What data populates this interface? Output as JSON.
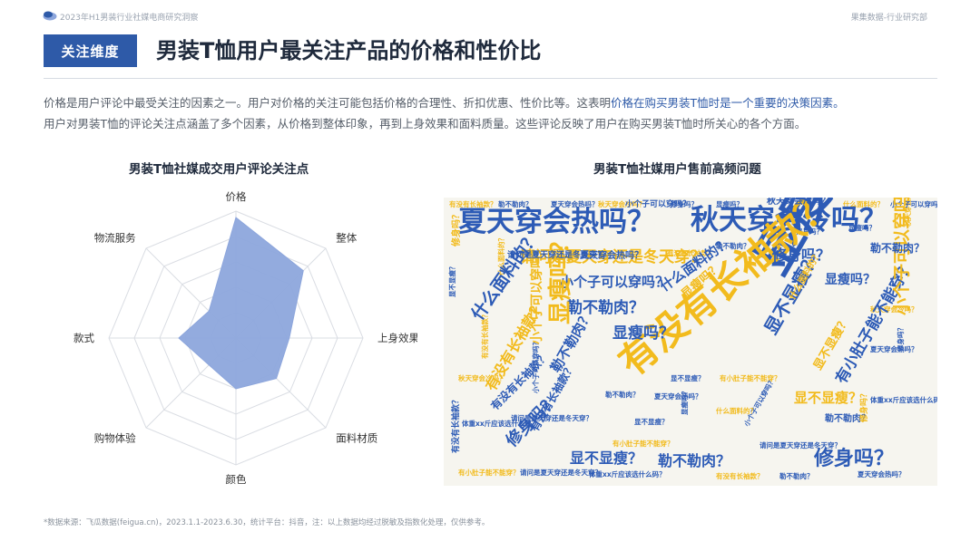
{
  "header": {
    "report_name": "2023年H1男装行业社媒电商研究洞察",
    "org": "果集数据-行业研究部"
  },
  "section_tag": "关注维度",
  "headline": "男装T恤用户最关注产品的价格和性价比",
  "paragraph": {
    "line1_a": "价格是用户评论中最受关注的因素之一。用户对价格的关注可能包括价格的合理性、折扣优惠、性价比等。这表明",
    "line1_hl": "价格在购买男装T恤时是一个重要的决策因素。",
    "line2": "用户对男装T恤的评论关注点涵盖了多个因素，从价格到整体印象，再到上身效果和面料质量。这些评论反映了用户在购买男装T恤时所关心的各个方面。"
  },
  "colors": {
    "accent": "#2e5aa8",
    "radar_fill": "#8da6dc",
    "cloud_blue": "#2d5bb6",
    "cloud_yellow": "#f2bb1d",
    "cloud_bg": "#f6f5ef"
  },
  "chart_data": [
    {
      "type": "radar",
      "title": "男装T恤社媒成交用户评论关注点",
      "categories": [
        "价格",
        "整体",
        "上身效果",
        "面料材质",
        "颜色",
        "购物体验",
        "款式",
        "物流服务"
      ],
      "values": [
        0.95,
        0.75,
        0.42,
        0.45,
        0.4,
        0.3,
        0.45,
        0.3
      ],
      "range": [
        0,
        1
      ],
      "rings": 5
    },
    {
      "type": "wordcloud",
      "title": "男装T恤社媒用户售前高频问题",
      "words": [
        {
          "text": "显瘦吗？",
          "weight": 10
        },
        {
          "text": "有没有长袖款？",
          "weight": 8
        },
        {
          "text": "夏天穿会热吗？",
          "weight": 7
        },
        {
          "text": "秋天穿会冷吗？",
          "weight": 7
        },
        {
          "text": "请问是夏天穿还是冬天穿？",
          "weight": 5
        },
        {
          "text": "小个子可以穿吗？",
          "weight": 4
        },
        {
          "text": "勒不勒肉？",
          "weight": 4
        },
        {
          "text": "修身吗？",
          "weight": 4
        },
        {
          "text": "什么面料的？",
          "weight": 4
        },
        {
          "text": "体重xx斤应该选什么码？",
          "weight": 4
        },
        {
          "text": "有小肚子能不能穿？",
          "weight": 4
        },
        {
          "text": "显不显瘦？",
          "weight": 3
        },
        {
          "text": "小个子可以穿吗？",
          "weight": 3
        }
      ]
    }
  ],
  "cloud": {
    "big": [
      {
        "text": "夏天穿会热吗？",
        "c": "blue"
      },
      {
        "text": "秋天穿会冷吗？",
        "c": "blue"
      },
      {
        "text": "请问是夏天穿还是冬天穿？",
        "c": "yellow"
      },
      {
        "text": "显瘦吗？",
        "c": "blue"
      },
      {
        "text": "有没有长袖款？",
        "c": "yellow"
      },
      {
        "text": "小个子可以穿吗？",
        "c": "blue"
      },
      {
        "text": "勒不勒肉？",
        "c": "blue"
      },
      {
        "text": "修身吗？",
        "c": "blue"
      },
      {
        "text": "修身吗？",
        "c": "blue"
      },
      {
        "text": "修身吗？",
        "c": "blue"
      },
      {
        "text": "显瘦吗？",
        "c": "yellow"
      },
      {
        "text": "显瘦吗？",
        "c": "blue"
      },
      {
        "text": "显不显瘦？",
        "c": "blue"
      },
      {
        "text": "显不显瘦？",
        "c": "blue"
      },
      {
        "text": "显不显瘦？",
        "c": "yellow"
      },
      {
        "text": "勒不勒肉？",
        "c": "blue"
      },
      {
        "text": "勒不勒肉？",
        "c": "blue"
      },
      {
        "text": "什么面料的？",
        "c": "blue"
      },
      {
        "text": "什么面料的？",
        "c": "blue"
      },
      {
        "text": "体重xx斤应该选什么码？",
        "c": "blue"
      },
      {
        "text": "小个子可以穿吗？",
        "c": "yellow"
      },
      {
        "text": "有小肚子能不能穿？",
        "c": "blue"
      },
      {
        "text": "显瘦吗？",
        "c": "yellow"
      },
      {
        "text": "有没有长袖款？",
        "c": "yellow"
      },
      {
        "text": "修身吗？",
        "c": "yellow"
      },
      {
        "text": "小个子可以穿吗？",
        "c": "yellow"
      },
      {
        "text": "有没有长袖款？",
        "c": "blue"
      },
      {
        "text": "显不显瘦？",
        "c": "yellow"
      },
      {
        "text": "什么面料的？",
        "c": "yellow"
      },
      {
        "text": "夏天穿会热吗？",
        "c": "blue"
      },
      {
        "text": "有没有长袖款？",
        "c": "blue"
      },
      {
        "text": "有没有长袖款？",
        "c": "blue"
      },
      {
        "text": "勒不勒肉？",
        "c": "blue"
      },
      {
        "text": "修身吗？",
        "c": "yellow"
      },
      {
        "text": "秋天穿会冷吗？",
        "c": "blue"
      },
      {
        "text": "小个子可以穿吗？",
        "c": "blue"
      },
      {
        "text": "请问是夏天穿还是冬天穿？",
        "c": "blue"
      },
      {
        "text": "显瘦吗？",
        "c": "blue"
      },
      {
        "text": "勒不勒肉？",
        "c": "blue"
      }
    ],
    "small": [
      "有没有长袖款？",
      "勒不勒肉？",
      "夏天穿会热吗？",
      "秋天穿会冷吗？",
      "修身吗？",
      "显瘦吗？",
      "什么面料的？",
      "小个子可以穿吗？",
      "显不显瘦？",
      "有小肚子能不能穿？",
      "请问是夏天穿还是冬天穿？",
      "体重xx斤应该选什么码？"
    ]
  },
  "footer": {
    "source": "*数据来源：飞瓜数据(feigua.cn)，2023.1.1-2023.6.30，统计平台：抖音，注：以上数据均经过脱敏及指数化处理，仅供参考。"
  }
}
